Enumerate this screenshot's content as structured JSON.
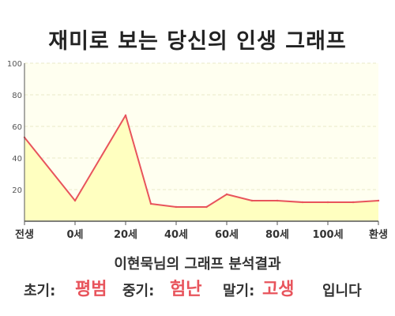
{
  "title": "재미로 보는 당신의 인생 그래프",
  "result": {
    "heading": "이현묵님의 그래프 분석결과",
    "early_label": "초기:",
    "early_value": "평범",
    "middle_label": "중기:",
    "middle_value": "험난",
    "late_label": "말기:",
    "late_value": "고생",
    "suffix": "입니다"
  },
  "colors": {
    "line": "#e8545c",
    "fill": "#ffffc0",
    "plot_background": "#fffff0",
    "grid": "#e8e8c8",
    "accent": "#e8545c"
  },
  "chart_data": {
    "type": "area",
    "categories": [
      "전생",
      "0세",
      "20세",
      "40세",
      "60세",
      "80세",
      "100세",
      "환생"
    ],
    "y_ticks": [
      100,
      80,
      60,
      40,
      20
    ],
    "ylim": [
      0,
      100
    ],
    "grid": true,
    "legend": "none",
    "series": [
      {
        "x": [
          0,
          1,
          2,
          2.5,
          3,
          3.6,
          4,
          4.5,
          5,
          5.5,
          6,
          6.5,
          7
        ],
        "values": [
          53,
          13,
          67,
          11,
          9,
          9,
          17,
          13,
          13,
          12,
          12,
          12,
          13
        ]
      }
    ]
  }
}
